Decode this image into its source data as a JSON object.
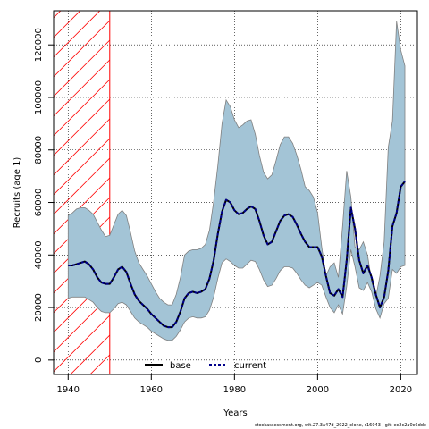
{
  "chart_data": {
    "type": "line",
    "xlabel": "Years",
    "ylabel": "Recruits (age 1)",
    "xlim": [
      1936.5,
      2024
    ],
    "ylim": [
      -5500,
      133000
    ],
    "x_ticks": [
      1940,
      1960,
      1980,
      2000,
      2020
    ],
    "x_tick_labels": [
      "1940",
      "1960",
      "1980",
      "2000",
      "2020"
    ],
    "y_ticks": [
      0,
      20000,
      40000,
      60000,
      80000,
      100000,
      120000
    ],
    "y_tick_labels": [
      "0",
      "20000",
      "40000",
      "60000",
      "80000",
      "100000",
      "120000"
    ],
    "grid": true,
    "grid_style": "dotted",
    "legend_position": "bottom-center",
    "hatched_period": [
      1936.5,
      1950
    ],
    "hatch_color": "#ff0000",
    "band_color": "#a3c4d6",
    "band_edge_color": "#808080",
    "years": [
      1940,
      1941,
      1942,
      1943,
      1944,
      1945,
      1946,
      1947,
      1948,
      1949,
      1950,
      1951,
      1952,
      1953,
      1954,
      1955,
      1956,
      1957,
      1958,
      1959,
      1960,
      1961,
      1962,
      1963,
      1964,
      1965,
      1966,
      1967,
      1968,
      1969,
      1970,
      1971,
      1972,
      1973,
      1974,
      1975,
      1976,
      1977,
      1978,
      1979,
      1980,
      1981,
      1982,
      1983,
      1984,
      1985,
      1986,
      1987,
      1988,
      1989,
      1990,
      1991,
      1992,
      1993,
      1994,
      1995,
      1996,
      1997,
      1998,
      1999,
      2000,
      2001,
      2002,
      2003,
      2004,
      2005,
      2006,
      2007,
      2008,
      2009,
      2010,
      2011,
      2012,
      2013,
      2014,
      2015,
      2016,
      2017,
      2018,
      2019,
      2020,
      2021
    ],
    "series": [
      {
        "name": "base",
        "color": "#000000",
        "style": "solid",
        "values": [
          36000,
          36000,
          36500,
          37000,
          37500,
          36500,
          34500,
          31500,
          29500,
          29000,
          29000,
          31500,
          34500,
          35500,
          33500,
          29000,
          25000,
          22500,
          21000,
          19500,
          17500,
          16000,
          14500,
          13000,
          12500,
          12500,
          14500,
          18500,
          23500,
          25500,
          26000,
          25500,
          26000,
          27000,
          31000,
          38000,
          48000,
          56500,
          61000,
          60000,
          57000,
          55500,
          56000,
          57500,
          58500,
          57500,
          53000,
          47500,
          44000,
          45000,
          49000,
          53000,
          55000,
          55500,
          54500,
          51500,
          48000,
          45000,
          43000,
          43000,
          43000,
          39500,
          32000,
          25500,
          24500,
          27000,
          24000,
          38000,
          58000,
          50000,
          38000,
          33000,
          36000,
          31500,
          25000,
          20000,
          24000,
          34000,
          51000,
          56000,
          66000,
          68000
        ]
      },
      {
        "name": "current",
        "color": "#00008b",
        "style": "dashed",
        "values": [
          36000,
          36000,
          36500,
          37000,
          37500,
          36500,
          34500,
          31500,
          29500,
          29000,
          29000,
          31500,
          34500,
          35500,
          33500,
          29000,
          25000,
          22500,
          21000,
          19500,
          17500,
          16000,
          14500,
          13000,
          12500,
          12500,
          14500,
          18500,
          23500,
          25500,
          26000,
          25500,
          26000,
          27000,
          31000,
          38000,
          48000,
          56500,
          61000,
          60000,
          57000,
          55500,
          56000,
          57500,
          58500,
          57500,
          53000,
          47500,
          44000,
          45000,
          49000,
          53000,
          55000,
          55500,
          54500,
          51500,
          48000,
          45000,
          43000,
          43000,
          43000,
          39500,
          32000,
          25500,
          24500,
          27000,
          24000,
          38000,
          58000,
          50000,
          38000,
          33000,
          36000,
          31500,
          25000,
          20000,
          24000,
          34000,
          51000,
          56000,
          66000,
          68000
        ]
      }
    ],
    "confidence_band": {
      "lower": [
        23500,
        24000,
        24000,
        24000,
        24000,
        23000,
        22000,
        20000,
        18500,
        18000,
        18000,
        19500,
        21500,
        22000,
        21000,
        18500,
        16000,
        14500,
        13500,
        12500,
        11000,
        10000,
        9000,
        8000,
        7500,
        7500,
        9000,
        11500,
        14500,
        16000,
        16500,
        16000,
        16000,
        16500,
        19000,
        24000,
        31000,
        37000,
        38500,
        37500,
        36000,
        35000,
        35000,
        36500,
        38000,
        37500,
        34500,
        30500,
        28000,
        28500,
        31000,
        34000,
        35500,
        35500,
        35000,
        33000,
        30500,
        28500,
        27500,
        28500,
        29500,
        28500,
        24000,
        20000,
        18000,
        21000,
        17500,
        28000,
        42000,
        35500,
        27500,
        26500,
        29500,
        26000,
        19500,
        16000,
        21500,
        23500,
        34500,
        33000,
        35500,
        36000
      ],
      "upper": [
        55000,
        56000,
        57500,
        58000,
        58000,
        57000,
        55500,
        52500,
        49500,
        47000,
        47500,
        51500,
        55500,
        57000,
        55000,
        48500,
        41500,
        37000,
        34500,
        32000,
        29000,
        26000,
        23500,
        22000,
        21000,
        21000,
        25000,
        31500,
        40000,
        41500,
        42000,
        42000,
        42500,
        44000,
        49500,
        60500,
        74000,
        90000,
        99000,
        96500,
        91500,
        88500,
        89500,
        91000,
        91500,
        86000,
        78000,
        71500,
        69000,
        70500,
        76000,
        82000,
        85000,
        85000,
        82500,
        78000,
        72500,
        66000,
        64500,
        62000,
        56000,
        43000,
        32000,
        35500,
        37000,
        31500,
        51000,
        72000,
        62000,
        43000,
        42000,
        45000,
        40000,
        30000,
        24000,
        32000,
        45000,
        81000,
        91000,
        129000,
        118000,
        112000
      ]
    },
    "footer_text": "stockassessment.org,  wit.27.3a47d_2022_clone,  r16043 ,  git:  ec2c2a0c6dde"
  }
}
